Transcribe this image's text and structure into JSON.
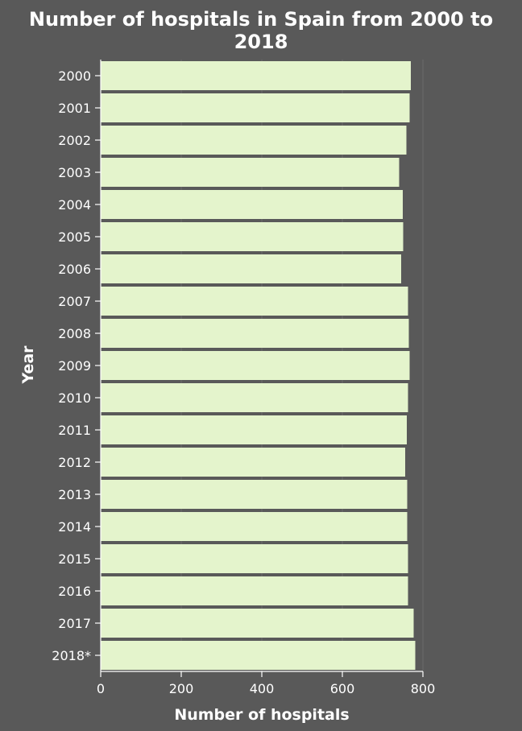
{
  "chart_data": {
    "type": "bar",
    "orientation": "horizontal",
    "title_lines": [
      "Number of hospitals in Spain from 2000 to",
      "2018"
    ],
    "xlabel": "Number of hospitals",
    "ylabel": "Year",
    "categories": [
      "2000",
      "2001",
      "2002",
      "2003",
      "2004",
      "2005",
      "2006",
      "2007",
      "2008",
      "2009",
      "2010",
      "2011",
      "2012",
      "2013",
      "2014",
      "2015",
      "2016",
      "2017",
      "2018*"
    ],
    "values": [
      770,
      767,
      759,
      741,
      750,
      751,
      746,
      763,
      765,
      767,
      763,
      760,
      756,
      761,
      761,
      763,
      763,
      777,
      781
    ],
    "xlim": [
      0,
      800
    ],
    "xticks": [
      0,
      200,
      400,
      600,
      800
    ],
    "grid": "vertical",
    "legend": "none",
    "colors": {
      "background": "#595959",
      "bar": "#e4f4cc",
      "text": "#ffffff"
    }
  }
}
